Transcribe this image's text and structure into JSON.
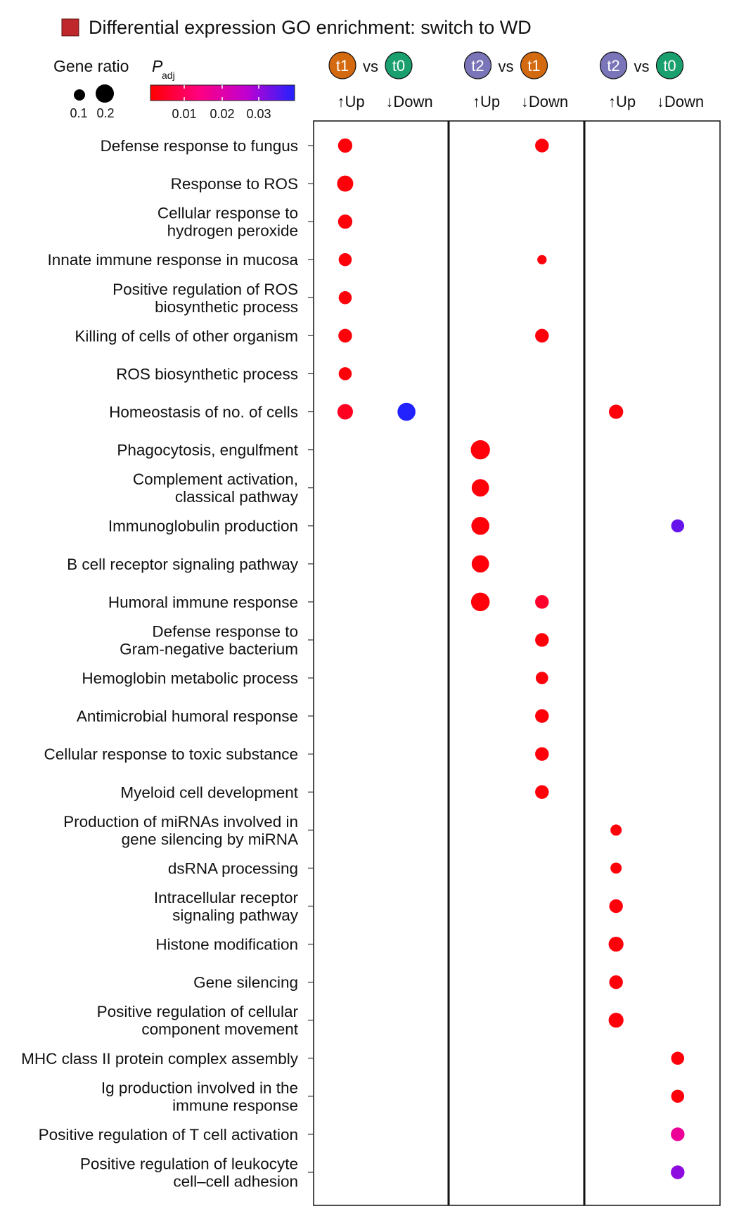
{
  "chart_data": {
    "type": "scatter",
    "title": "Differential expression GO enrichment: switch to WD",
    "title_marker_color": "#c0272d",
    "legend": {
      "size_title": "Gene ratio",
      "size_values": [
        "0.1",
        "0.2"
      ],
      "color_title_main": "P",
      "color_title_sub": "adj",
      "color_ticks": [
        "0.01",
        "0.02",
        "0.03"
      ],
      "color_range": [
        0.0,
        0.035
      ],
      "color_scale": [
        "#ff0000",
        "#ff0080",
        "#c000d0",
        "#2222ff"
      ]
    },
    "comparisons": [
      {
        "a": "t1",
        "b": "t0",
        "vs": "vs",
        "a_color": "#d46a10",
        "b_color": "#1a9f6e",
        "up": "↑Up",
        "down": "↓Down"
      },
      {
        "a": "t2",
        "b": "t1",
        "vs": "vs",
        "a_color": "#7a74b8",
        "b_color": "#d46a10",
        "up": "↑Up",
        "down": "↓Down"
      },
      {
        "a": "t2",
        "b": "t0",
        "vs": "vs",
        "a_color": "#7a74b8",
        "b_color": "#1a9f6e",
        "up": "↑Up",
        "down": "↓Down"
      }
    ],
    "categories": [
      "Defense response to fungus",
      "Response to ROS",
      "Cellular response to\nhydrogen peroxide",
      "Innate immune response in mucosa",
      "Positive regulation of ROS\nbiosynthetic process",
      "Killing of cells of other organism",
      "ROS biosynthetic process",
      "Homeostasis of no. of cells",
      "Phagocytosis, engulfment",
      "Complement activation,\nclassical pathway",
      "Immunoglobulin production",
      "B cell receptor signaling pathway",
      "Humoral immune response",
      "Defense response to\nGram-negative bacterium",
      "Hemoglobin metabolic process",
      "Antimicrobial humoral response",
      "Cellular response to toxic substance",
      "Myeloid cell development",
      "Production of miRNAs involved in\ngene silencing by miRNA",
      "dsRNA processing",
      "Intracellular receptor\nsignaling pathway",
      "Histone modification",
      "Gene silencing",
      "Positive regulation of cellular\ncomponent movement",
      "MHC class II protein complex assembly",
      "Ig production involved in the\nimmune response",
      "Positive regulation of T cell activation",
      "Positive regulation of leukocyte\ncell–cell adhesion"
    ],
    "points": [
      {
        "term": 0,
        "comparison": 0,
        "direction": "up",
        "gene_ratio": 0.14,
        "padj": 0.001
      },
      {
        "term": 0,
        "comparison": 1,
        "direction": "down",
        "gene_ratio": 0.13,
        "padj": 0.001
      },
      {
        "term": 1,
        "comparison": 0,
        "direction": "up",
        "gene_ratio": 0.17,
        "padj": 0.001
      },
      {
        "term": 2,
        "comparison": 0,
        "direction": "up",
        "gene_ratio": 0.14,
        "padj": 0.001
      },
      {
        "term": 3,
        "comparison": 0,
        "direction": "up",
        "gene_ratio": 0.12,
        "padj": 0.001
      },
      {
        "term": 3,
        "comparison": 1,
        "direction": "down",
        "gene_ratio": 0.06,
        "padj": 0.001
      },
      {
        "term": 4,
        "comparison": 0,
        "direction": "up",
        "gene_ratio": 0.12,
        "padj": 0.001
      },
      {
        "term": 5,
        "comparison": 0,
        "direction": "up",
        "gene_ratio": 0.13,
        "padj": 0.001
      },
      {
        "term": 5,
        "comparison": 1,
        "direction": "down",
        "gene_ratio": 0.13,
        "padj": 0.001
      },
      {
        "term": 6,
        "comparison": 0,
        "direction": "up",
        "gene_ratio": 0.12,
        "padj": 0.001
      },
      {
        "term": 7,
        "comparison": 0,
        "direction": "up",
        "gene_ratio": 0.16,
        "padj": 0.003
      },
      {
        "term": 7,
        "comparison": 0,
        "direction": "down",
        "gene_ratio": 0.2,
        "padj": 0.035
      },
      {
        "term": 7,
        "comparison": 2,
        "direction": "up",
        "gene_ratio": 0.14,
        "padj": 0.001
      },
      {
        "term": 8,
        "comparison": 1,
        "direction": "up",
        "gene_ratio": 0.22,
        "padj": 0.001
      },
      {
        "term": 9,
        "comparison": 1,
        "direction": "up",
        "gene_ratio": 0.19,
        "padj": 0.001
      },
      {
        "term": 10,
        "comparison": 1,
        "direction": "up",
        "gene_ratio": 0.2,
        "padj": 0.001
      },
      {
        "term": 10,
        "comparison": 2,
        "direction": "down",
        "gene_ratio": 0.12,
        "padj": 0.03
      },
      {
        "term": 11,
        "comparison": 1,
        "direction": "up",
        "gene_ratio": 0.19,
        "padj": 0.001
      },
      {
        "term": 12,
        "comparison": 1,
        "direction": "up",
        "gene_ratio": 0.21,
        "padj": 0.001
      },
      {
        "term": 12,
        "comparison": 1,
        "direction": "down",
        "gene_ratio": 0.13,
        "padj": 0.004
      },
      {
        "term": 13,
        "comparison": 1,
        "direction": "down",
        "gene_ratio": 0.13,
        "padj": 0.001
      },
      {
        "term": 14,
        "comparison": 1,
        "direction": "down",
        "gene_ratio": 0.11,
        "padj": 0.001
      },
      {
        "term": 15,
        "comparison": 1,
        "direction": "down",
        "gene_ratio": 0.13,
        "padj": 0.001
      },
      {
        "term": 16,
        "comparison": 1,
        "direction": "down",
        "gene_ratio": 0.13,
        "padj": 0.001
      },
      {
        "term": 17,
        "comparison": 1,
        "direction": "down",
        "gene_ratio": 0.13,
        "padj": 0.001
      },
      {
        "term": 18,
        "comparison": 2,
        "direction": "up",
        "gene_ratio": 0.09,
        "padj": 0.001
      },
      {
        "term": 19,
        "comparison": 2,
        "direction": "up",
        "gene_ratio": 0.09,
        "padj": 0.001
      },
      {
        "term": 20,
        "comparison": 2,
        "direction": "up",
        "gene_ratio": 0.13,
        "padj": 0.001
      },
      {
        "term": 21,
        "comparison": 2,
        "direction": "up",
        "gene_ratio": 0.15,
        "padj": 0.001
      },
      {
        "term": 22,
        "comparison": 2,
        "direction": "up",
        "gene_ratio": 0.13,
        "padj": 0.001
      },
      {
        "term": 23,
        "comparison": 2,
        "direction": "up",
        "gene_ratio": 0.15,
        "padj": 0.001
      },
      {
        "term": 24,
        "comparison": 2,
        "direction": "down",
        "gene_ratio": 0.12,
        "padj": 0.001
      },
      {
        "term": 25,
        "comparison": 2,
        "direction": "down",
        "gene_ratio": 0.12,
        "padj": 0.001
      },
      {
        "term": 26,
        "comparison": 2,
        "direction": "down",
        "gene_ratio": 0.13,
        "padj": 0.015
      },
      {
        "term": 27,
        "comparison": 2,
        "direction": "down",
        "gene_ratio": 0.13,
        "padj": 0.027
      }
    ]
  }
}
